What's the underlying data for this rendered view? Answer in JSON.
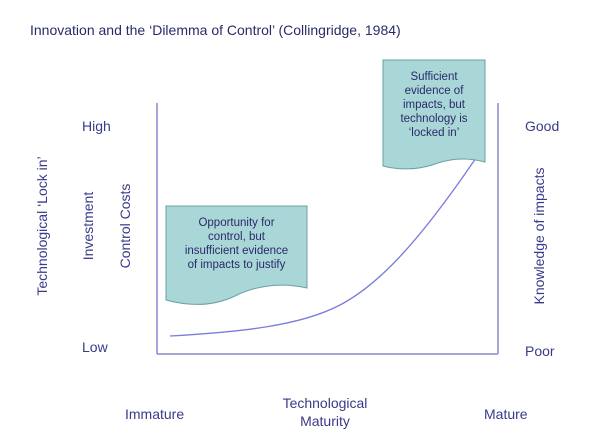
{
  "title": "Innovation and the ‘Dilemma of Control’ (Collingridge, 1984)",
  "left_axis": {
    "outer_label": "Technological ‘Lock in’",
    "middle_label": "Investment",
    "inner_label": "Control Costs",
    "high": "High",
    "low": "Low"
  },
  "right_axis": {
    "label": "Knowledge of impacts",
    "high": "Good",
    "low": "Poor"
  },
  "x_axis": {
    "label_line1": "Technological",
    "label_line2": "Maturity",
    "left": "Immature",
    "right": "Mature"
  },
  "callouts": {
    "early": {
      "lines": [
        "Opportunity for",
        "control, but",
        "insufficient evidence",
        "of impacts to justify"
      ]
    },
    "late": {
      "lines": [
        "Sufficient",
        "evidence of",
        "impacts, but",
        "technology is",
        "‘locked in’"
      ]
    }
  },
  "colors": {
    "text": "#3a3a8a",
    "axis": "#8a8ac8",
    "curve": "#7b7bdc",
    "callout_fill": "#a9d6d6",
    "callout_stroke": "#6aa0a0"
  }
}
